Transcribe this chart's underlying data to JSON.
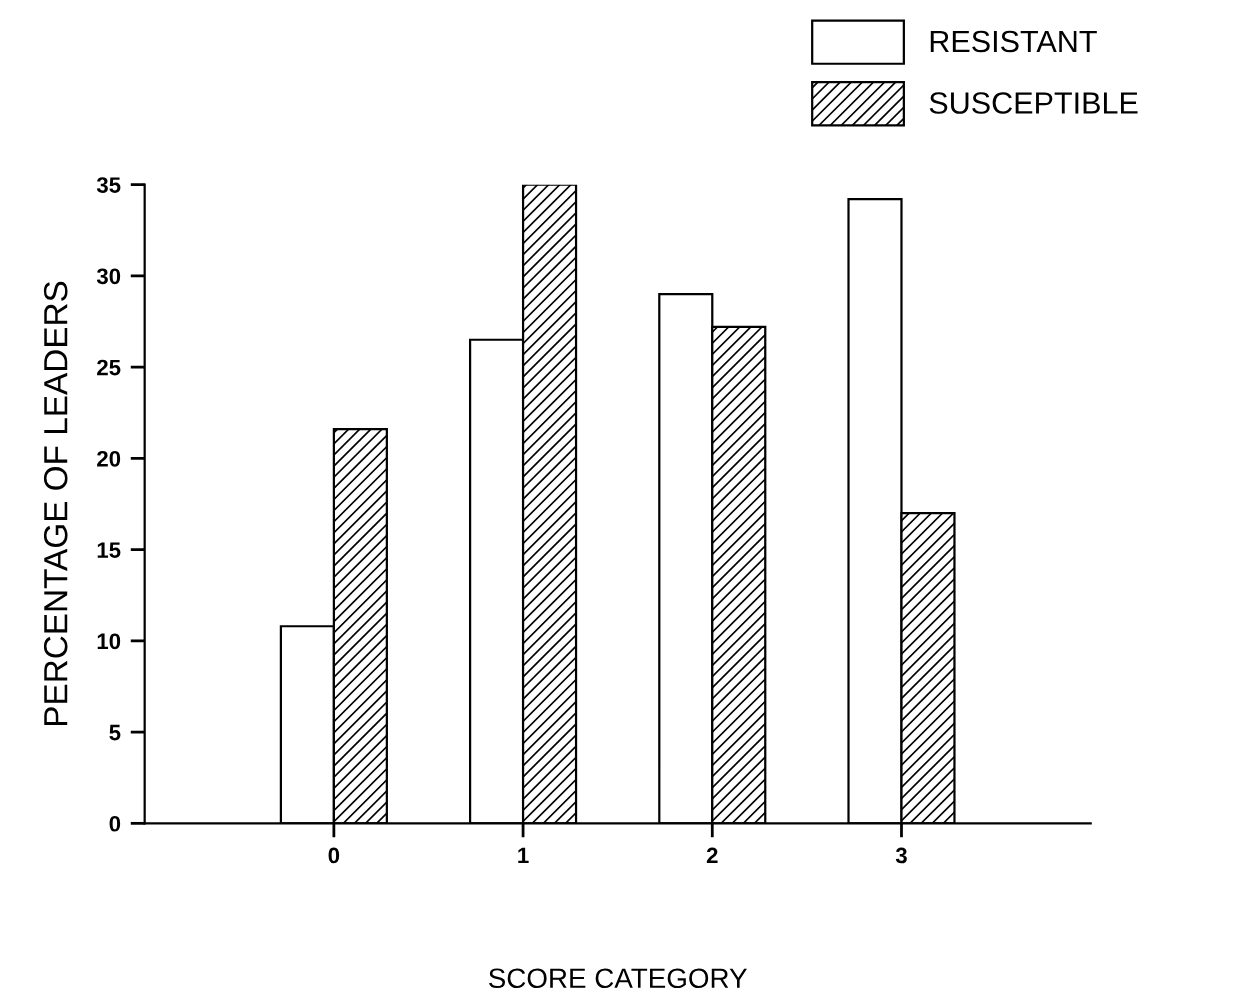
{
  "chart_data": {
    "type": "bar",
    "xlabel": "SCORE CATEGORY",
    "ylabel": "PERCENTAGE OF LEADERS",
    "x": [
      0,
      1,
      2,
      3
    ],
    "xlim": [
      -1,
      4
    ],
    "xticks": [
      0,
      1,
      2,
      3
    ],
    "ylim": [
      0,
      35
    ],
    "yticks": [
      0,
      5,
      10,
      15,
      20,
      25,
      30,
      35
    ],
    "series": [
      {
        "name": "RESISTANT",
        "color": "#ffffff",
        "values": [
          10.8,
          26.5,
          29.0,
          34.2
        ]
      },
      {
        "name": "SUSCEPTIBLE",
        "color": "#000000",
        "values": [
          21.6,
          35.0,
          27.2,
          17.0
        ]
      }
    ],
    "legend": "top right",
    "grid": false
  }
}
